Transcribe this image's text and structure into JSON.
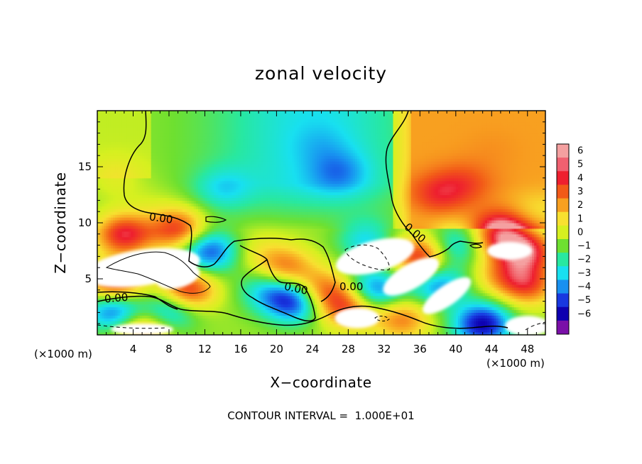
{
  "chart_data": {
    "type": "heatmap",
    "title": "zonal velocity",
    "xlabel": "X−coordinate",
    "ylabel": "Z−coordinate",
    "x_unit_left": "(×1000 m)",
    "x_unit_right": "(×1000 m)",
    "footer": "CONTOUR INTERVAL =  1.000E+01",
    "xlim": [
      0,
      50
    ],
    "ylim": [
      0,
      20
    ],
    "x_ticks": [
      4,
      8,
      12,
      16,
      20,
      24,
      28,
      32,
      36,
      40,
      44,
      48
    ],
    "y_ticks": [
      5,
      10,
      15
    ],
    "contour_label": "0.00",
    "colorbar": {
      "min": -6,
      "max": 6,
      "labels": [
        "6",
        "5",
        "4",
        "3",
        "2",
        "1",
        "0",
        "−1",
        "−2",
        "−3",
        "−4",
        "−5",
        "−6"
      ],
      "colors": [
        "#f4a0a0",
        "#f06070",
        "#ee1f2f",
        "#f25a18",
        "#f8a020",
        "#f8e030",
        "#d6f020",
        "#6ee030",
        "#28e8a0",
        "#18e0f0",
        "#1890f0",
        "#1838e0",
        "#0e00b0",
        "#7a10a8"
      ]
    },
    "color_stops": [
      [
        -6,
        "#7a10a8"
      ],
      [
        -5,
        "#0e00b0"
      ],
      [
        -4,
        "#1838e0"
      ],
      [
        -3,
        "#1890f0"
      ],
      [
        -2,
        "#18e0f0"
      ],
      [
        -1,
        "#28e8a0"
      ],
      [
        0,
        "#6ee030"
      ],
      [
        1,
        "#d6f020"
      ],
      [
        2,
        "#f8e030"
      ],
      [
        3,
        "#f8a020"
      ],
      [
        4,
        "#f25a18"
      ],
      [
        5,
        "#ee1f2f"
      ],
      [
        6,
        "#f4a0a0"
      ]
    ],
    "features": [
      {
        "x": 25,
        "y": 17,
        "v": -2.5
      },
      {
        "x": 27,
        "y": 14.5,
        "v": -3.4
      },
      {
        "x": 14,
        "y": 13,
        "v": -2.2
      },
      {
        "x": 44,
        "y": 16.5,
        "v": 3.2
      },
      {
        "x": 38,
        "y": 12.5,
        "v": 4.6
      },
      {
        "x": 41,
        "y": 13.5,
        "v": 4.2
      },
      {
        "x": 46,
        "y": 13,
        "v": 3.0
      },
      {
        "x": 2,
        "y": 14,
        "v": 1.2
      },
      {
        "x": 6,
        "y": 12,
        "v": 0.6
      },
      {
        "x": 49,
        "y": 11,
        "v": 1.8
      },
      {
        "x": 12.5,
        "y": 7.5,
        "v": -3.8
      },
      {
        "x": 21,
        "y": 6,
        "v": 3.5
      },
      {
        "x": 18,
        "y": 7.5,
        "v": 1.4
      },
      {
        "x": 22,
        "y": 3,
        "v": -4.2
      },
      {
        "x": 19,
        "y": 4,
        "v": -2.0
      },
      {
        "x": 2,
        "y": 2.2,
        "v": -4.2
      },
      {
        "x": 8,
        "y": 2.2,
        "v": -3.0
      },
      {
        "x": 5,
        "y": 0.6,
        "v": 4.0
      },
      {
        "x": 28,
        "y": 2.5,
        "v": 4.2
      },
      {
        "x": 34,
        "y": 1.5,
        "v": 3.5
      },
      {
        "x": 45,
        "y": 5.5,
        "v": 2.5
      },
      {
        "x": 48,
        "y": 4.5,
        "v": 4.0
      },
      {
        "x": 43,
        "y": 1.0,
        "v": -5.0
      },
      {
        "x": 38,
        "y": 4.5,
        "v": -3.0
      },
      {
        "x": 31,
        "y": 4.0,
        "v": -3.5
      },
      {
        "x": 40,
        "y": 8.0,
        "v": -2.2
      },
      {
        "x": 30,
        "y": 8.5,
        "v": -2.0
      },
      {
        "x": 9,
        "y": 9.5,
        "v": 4.5
      },
      {
        "x": 3,
        "y": 9.0,
        "v": 5.0
      },
      {
        "x": 45,
        "y": 9.0,
        "v": 5.0
      },
      {
        "x": 36,
        "y": 7.0,
        "v": 5.0
      },
      {
        "x": 48,
        "y": 7.5,
        "v": 4.8
      },
      {
        "x": 10,
        "y": 4.0,
        "v": 5.0
      },
      {
        "x": 2,
        "y": 4.5,
        "v": 5.0
      },
      {
        "x": 25,
        "y": 4.0,
        "v": 3.8
      }
    ],
    "exceed_regions": [
      {
        "x": 5,
        "y": 6.0,
        "rx": 6.5,
        "ry": 1.6,
        "rot": -8
      },
      {
        "x": 9,
        "y": 5.2,
        "rx": 2.5,
        "ry": 1.0,
        "rot": -15
      },
      {
        "x": 31,
        "y": 7.0,
        "rx": 4.5,
        "ry": 1.4,
        "rot": -15
      },
      {
        "x": 35,
        "y": 5.2,
        "rx": 3.5,
        "ry": 1.1,
        "rot": -30
      },
      {
        "x": 39,
        "y": 3.5,
        "rx": 3.2,
        "ry": 0.9,
        "rot": -35
      },
      {
        "x": 46,
        "y": 7.5,
        "rx": 2.5,
        "ry": 0.8,
        "rot": 0
      },
      {
        "x": 48,
        "y": 0.8,
        "rx": 2.5,
        "ry": 0.9,
        "rot": 0
      },
      {
        "x": 29,
        "y": 1.5,
        "rx": 2.5,
        "ry": 0.9,
        "rot": 0
      },
      {
        "x": 5,
        "y": 0.5,
        "rx": 3.5,
        "ry": 0.5,
        "rot": 0
      }
    ]
  }
}
